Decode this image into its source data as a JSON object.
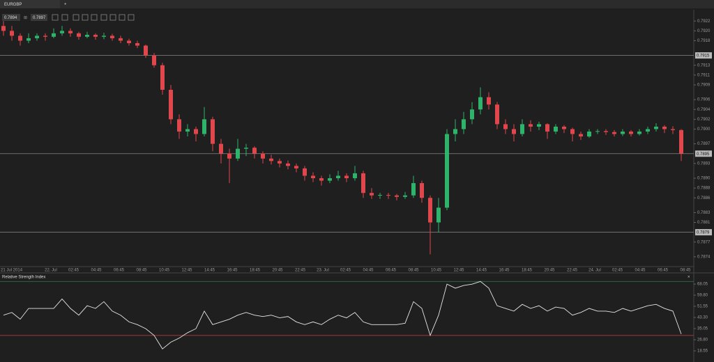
{
  "tab": "EURGBP",
  "bid": "0.7894",
  "ask": "0.7897",
  "chart_data": [
    {
      "type": "candlestick",
      "ylim": [
        0.7872,
        0.79243
      ],
      "yticks": [
        {
          "value": 0.7922,
          "label": "0.7922"
        },
        {
          "value": 0.792,
          "label": "0.7920"
        },
        {
          "value": 0.7918,
          "label": "0.7918"
        },
        {
          "value": 0.7913,
          "label": "0.7913"
        },
        {
          "value": 0.7911,
          "label": "0.7911"
        },
        {
          "value": 0.7909,
          "label": "0.7909"
        },
        {
          "value": 0.7906,
          "label": "0.7906"
        },
        {
          "value": 0.7904,
          "label": "0.7904"
        },
        {
          "value": 0.7902,
          "label": "0.7902"
        },
        {
          "value": 0.79,
          "label": "0.7900"
        },
        {
          "value": 0.7897,
          "label": "0.7897"
        },
        {
          "value": 0.7893,
          "label": "0.7893"
        },
        {
          "value": 0.789,
          "label": "0.7890"
        },
        {
          "value": 0.7888,
          "label": "0.7888"
        },
        {
          "value": 0.7886,
          "label": "0.7886"
        },
        {
          "value": 0.7883,
          "label": "0.7883"
        },
        {
          "value": 0.7881,
          "label": "0.7881"
        },
        {
          "value": 0.7877,
          "label": "0.7877"
        },
        {
          "value": 0.7874,
          "label": "0.7874"
        }
      ],
      "levels": [
        0.7915,
        0.7895,
        0.7879
      ],
      "xticks": [
        "21 Jul 2014",
        "22. Jul",
        "02:45",
        "04:45",
        "06:45",
        "08:45",
        "10:45",
        "12:45",
        "14:45",
        "16:45",
        "18:45",
        "20:45",
        "22:45",
        "23. Jul",
        "02:45",
        "04:45",
        "06:45",
        "08:45",
        "10:45",
        "12:45",
        "14:45",
        "16:45",
        "18:45",
        "20:45",
        "22:45",
        "24. Jul",
        "02:45",
        "04:45",
        "06:45",
        "08:45"
      ],
      "up_color": "#2fb36b",
      "down_color": "#e0474c",
      "ohlc": [
        [
          0.7921,
          0.7922,
          0.7919,
          0.792
        ],
        [
          0.792,
          0.7921,
          0.7918,
          0.7919
        ],
        [
          0.7919,
          0.79195,
          0.7917,
          0.7918
        ],
        [
          0.7918,
          0.79195,
          0.79175,
          0.79185
        ],
        [
          0.79185,
          0.79195,
          0.7918,
          0.7919
        ],
        [
          0.7919,
          0.79195,
          0.7918,
          0.79188
        ],
        [
          0.79188,
          0.79205,
          0.79185,
          0.79195
        ],
        [
          0.79195,
          0.7921,
          0.7919,
          0.792
        ],
        [
          0.792,
          0.79205,
          0.79188,
          0.79195
        ],
        [
          0.79195,
          0.79198,
          0.79182,
          0.79188
        ],
        [
          0.79188,
          0.79198,
          0.79185,
          0.79192
        ],
        [
          0.79192,
          0.79195,
          0.79182,
          0.79188
        ],
        [
          0.79188,
          0.79196,
          0.79183,
          0.7919
        ],
        [
          0.7919,
          0.79194,
          0.7918,
          0.79185
        ],
        [
          0.79185,
          0.7919,
          0.79175,
          0.7918
        ],
        [
          0.7918,
          0.79184,
          0.7917,
          0.79175
        ],
        [
          0.79175,
          0.7918,
          0.79165,
          0.7917
        ],
        [
          0.7917,
          0.79172,
          0.79145,
          0.7915
        ],
        [
          0.7915,
          0.79155,
          0.79125,
          0.7913
        ],
        [
          0.7913,
          0.79135,
          0.7907,
          0.7908
        ],
        [
          0.7908,
          0.7909,
          0.7901,
          0.7902
        ],
        [
          0.7902,
          0.7903,
          0.7898,
          0.78995
        ],
        [
          0.78995,
          0.7901,
          0.78985,
          0.79
        ],
        [
          0.79,
          0.79005,
          0.78975,
          0.7899
        ],
        [
          0.7899,
          0.79045,
          0.78985,
          0.7902
        ],
        [
          0.7902,
          0.79025,
          0.78955,
          0.7897
        ],
        [
          0.7897,
          0.7898,
          0.7893,
          0.7895
        ],
        [
          0.7895,
          0.7896,
          0.7889,
          0.7894
        ],
        [
          0.7894,
          0.7898,
          0.78935,
          0.7896
        ],
        [
          0.7896,
          0.7897,
          0.78945,
          0.78962
        ],
        [
          0.78962,
          0.78965,
          0.7894,
          0.7895
        ],
        [
          0.7895,
          0.78955,
          0.7893,
          0.7894
        ],
        [
          0.7894,
          0.78948,
          0.78928,
          0.78935
        ],
        [
          0.78935,
          0.7894,
          0.78922,
          0.7893
        ],
        [
          0.7893,
          0.78936,
          0.78918,
          0.78925
        ],
        [
          0.78925,
          0.7893,
          0.78912,
          0.7892
        ],
        [
          0.7892,
          0.78925,
          0.78895,
          0.78905
        ],
        [
          0.78905,
          0.78912,
          0.78892,
          0.789
        ],
        [
          0.789,
          0.78905,
          0.78885,
          0.78895
        ],
        [
          0.78895,
          0.78908,
          0.7889,
          0.789
        ],
        [
          0.789,
          0.78915,
          0.78895,
          0.78905
        ],
        [
          0.78905,
          0.7891,
          0.78892,
          0.789
        ],
        [
          0.789,
          0.78925,
          0.78895,
          0.7891
        ],
        [
          0.7891,
          0.78915,
          0.7886,
          0.7887
        ],
        [
          0.7887,
          0.7888,
          0.78858,
          0.78865
        ],
        [
          0.78865,
          0.7887,
          0.78858,
          0.78866
        ],
        [
          0.78866,
          0.7887,
          0.78858,
          0.78865
        ],
        [
          0.78865,
          0.78868,
          0.78855,
          0.78862
        ],
        [
          0.78862,
          0.78872,
          0.78858,
          0.78865
        ],
        [
          0.78865,
          0.78905,
          0.7886,
          0.7889
        ],
        [
          0.7889,
          0.78895,
          0.7885,
          0.7886
        ],
        [
          0.7886,
          0.78865,
          0.78745,
          0.7881
        ],
        [
          0.7881,
          0.7886,
          0.7879,
          0.7884
        ],
        [
          0.7884,
          0.79,
          0.78835,
          0.7899
        ],
        [
          0.7899,
          0.7902,
          0.78975,
          0.79
        ],
        [
          0.79,
          0.79035,
          0.7899,
          0.7902
        ],
        [
          0.7902,
          0.79055,
          0.7901,
          0.7904
        ],
        [
          0.7904,
          0.79085,
          0.7903,
          0.79065
        ],
        [
          0.79065,
          0.79075,
          0.7904,
          0.7905
        ],
        [
          0.7905,
          0.79055,
          0.79,
          0.7901
        ],
        [
          0.7901,
          0.7902,
          0.7899,
          0.79
        ],
        [
          0.79,
          0.7901,
          0.78975,
          0.7899
        ],
        [
          0.7899,
          0.7902,
          0.78985,
          0.7901
        ],
        [
          0.7901,
          0.79018,
          0.78995,
          0.79005
        ],
        [
          0.79005,
          0.79015,
          0.78998,
          0.7901
        ],
        [
          0.7901,
          0.79012,
          0.7898,
          0.78995
        ],
        [
          0.78995,
          0.7901,
          0.7899,
          0.79005
        ],
        [
          0.79005,
          0.79008,
          0.78992,
          0.79
        ],
        [
          0.79,
          0.79003,
          0.78975,
          0.7899
        ],
        [
          0.7899,
          0.78995,
          0.78978,
          0.78985
        ],
        [
          0.78985,
          0.79,
          0.78982,
          0.78995
        ],
        [
          0.78995,
          0.79,
          0.7899,
          0.78996
        ],
        [
          0.78996,
          0.79,
          0.78988,
          0.78994
        ],
        [
          0.78994,
          0.78998,
          0.78985,
          0.7899
        ],
        [
          0.7899,
          0.79,
          0.78986,
          0.78995
        ],
        [
          0.78995,
          0.78998,
          0.78985,
          0.7899
        ],
        [
          0.7899,
          0.79,
          0.78987,
          0.78995
        ],
        [
          0.78995,
          0.79005,
          0.7899,
          0.79
        ],
        [
          0.79,
          0.79012,
          0.78995,
          0.79005
        ],
        [
          0.79005,
          0.79008,
          0.78992,
          0.79
        ],
        [
          0.79,
          0.79006,
          0.7899,
          0.78998
        ],
        [
          0.78998,
          0.79,
          0.78935,
          0.7895
        ]
      ]
    },
    {
      "type": "line",
      "title": "Relative Strength Index",
      "ylim": [
        12.35,
        72.2
      ],
      "yticks": [
        68.05,
        {
          "value": 59.8,
          "label": "59.80"
        },
        51.55,
        {
          "value": 43.3,
          "label": "43.30"
        },
        35.05,
        {
          "value": 26.8,
          "label": "26.80"
        },
        18.55
      ],
      "levels": [
        70,
        30
      ],
      "level_colors": [
        "#2e7d4f",
        "#b23a3a"
      ],
      "color": "#e6e6e6",
      "values": [
        45,
        47,
        42,
        50,
        50,
        50,
        50,
        57,
        50,
        45,
        52,
        50,
        55,
        48,
        45,
        40,
        38,
        35,
        30,
        20,
        25,
        28,
        32,
        35,
        48,
        38,
        40,
        42,
        45,
        47,
        45,
        44,
        45,
        43,
        44,
        40,
        38,
        40,
        38,
        42,
        45,
        43,
        47,
        40,
        38,
        38,
        38,
        38,
        39,
        55,
        50,
        30,
        45,
        68,
        65,
        67,
        68,
        70,
        65,
        52,
        50,
        48,
        53,
        50,
        52,
        48,
        51,
        50,
        45,
        47,
        50,
        48,
        48,
        47,
        50,
        48,
        50,
        52,
        53,
        50,
        48,
        31
      ]
    }
  ]
}
